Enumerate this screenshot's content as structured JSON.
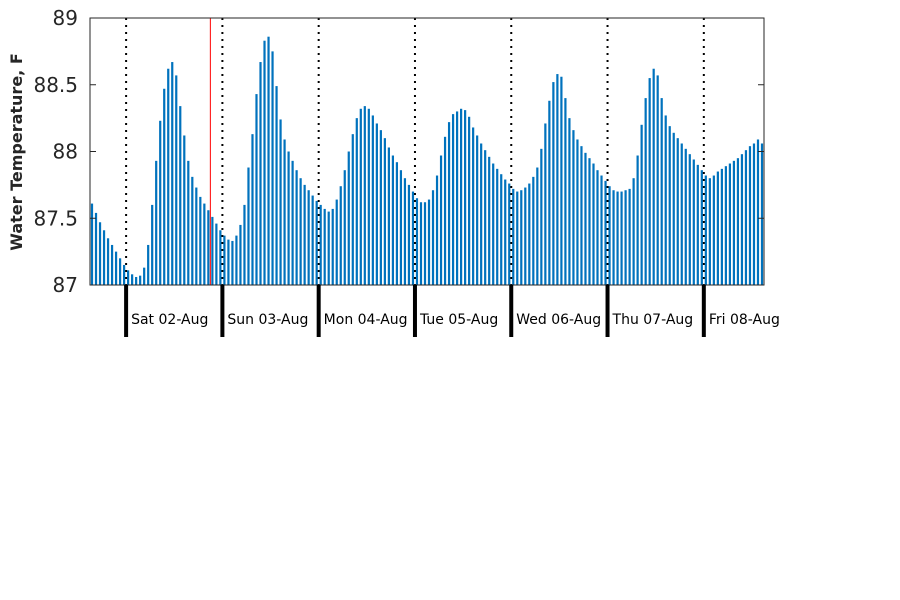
{
  "chart_data": {
    "type": "bar",
    "title": "",
    "xlabel": "",
    "ylabel": "Water Temperature, F",
    "ylim": [
      87,
      89
    ],
    "yticks": [
      "87",
      "87.5",
      "88",
      "88.5",
      "89"
    ],
    "grid": false,
    "bar_color": "#0072BD",
    "marker_color": "#FF0000",
    "x_unit": "hours since start of displayed window (hourly readings)",
    "day_labels": [
      "Sat 02-Aug",
      "Sun 03-Aug",
      "Mon 04-Aug",
      "Tue 05-Aug",
      "Wed 06-Aug",
      "Thu 07-Aug",
      "Fri 08-Aug"
    ],
    "day_boundaries_hours": [
      9,
      33,
      57,
      81,
      105,
      129,
      153
    ],
    "marker_hour": 30,
    "values": [
      87.61,
      87.54,
      87.47,
      87.41,
      87.35,
      87.3,
      87.25,
      87.2,
      87.15,
      87.11,
      87.08,
      87.06,
      87.07,
      87.13,
      87.3,
      87.6,
      87.93,
      88.23,
      88.47,
      88.62,
      88.67,
      88.57,
      88.34,
      88.12,
      87.93,
      87.81,
      87.73,
      87.66,
      87.61,
      87.56,
      87.51,
      87.46,
      87.41,
      87.37,
      87.34,
      87.33,
      87.37,
      87.45,
      87.6,
      87.88,
      88.13,
      88.43,
      88.67,
      88.83,
      88.86,
      88.75,
      88.49,
      88.24,
      88.09,
      88.0,
      87.93,
      87.86,
      87.8,
      87.75,
      87.71,
      87.67,
      87.63,
      87.6,
      87.57,
      87.55,
      87.57,
      87.64,
      87.74,
      87.86,
      88.0,
      88.13,
      88.25,
      88.32,
      88.34,
      88.32,
      88.27,
      88.21,
      88.16,
      88.1,
      88.03,
      87.97,
      87.92,
      87.86,
      87.8,
      87.75,
      87.7,
      87.65,
      87.62,
      87.62,
      87.64,
      87.71,
      87.82,
      87.97,
      88.11,
      88.22,
      88.28,
      88.3,
      88.32,
      88.31,
      88.26,
      88.18,
      88.12,
      88.06,
      88.01,
      87.96,
      87.91,
      87.87,
      87.83,
      87.79,
      87.76,
      87.72,
      87.7,
      87.71,
      87.73,
      87.76,
      87.81,
      87.88,
      88.02,
      88.21,
      88.38,
      88.52,
      88.58,
      88.56,
      88.4,
      88.25,
      88.16,
      88.09,
      88.04,
      87.99,
      87.95,
      87.91,
      87.86,
      87.82,
      87.78,
      87.74,
      87.71,
      87.7,
      87.7,
      87.71,
      87.72,
      87.8,
      87.97,
      88.2,
      88.4,
      88.55,
      88.62,
      88.57,
      88.4,
      88.27,
      88.19,
      88.14,
      88.1,
      88.06,
      88.02,
      87.98,
      87.94,
      87.9,
      87.86,
      87.82,
      87.8,
      87.82,
      87.85,
      87.87,
      87.89,
      87.91,
      87.93,
      87.95,
      87.98,
      88.01,
      88.04,
      88.06,
      88.09,
      88.06
    ]
  }
}
